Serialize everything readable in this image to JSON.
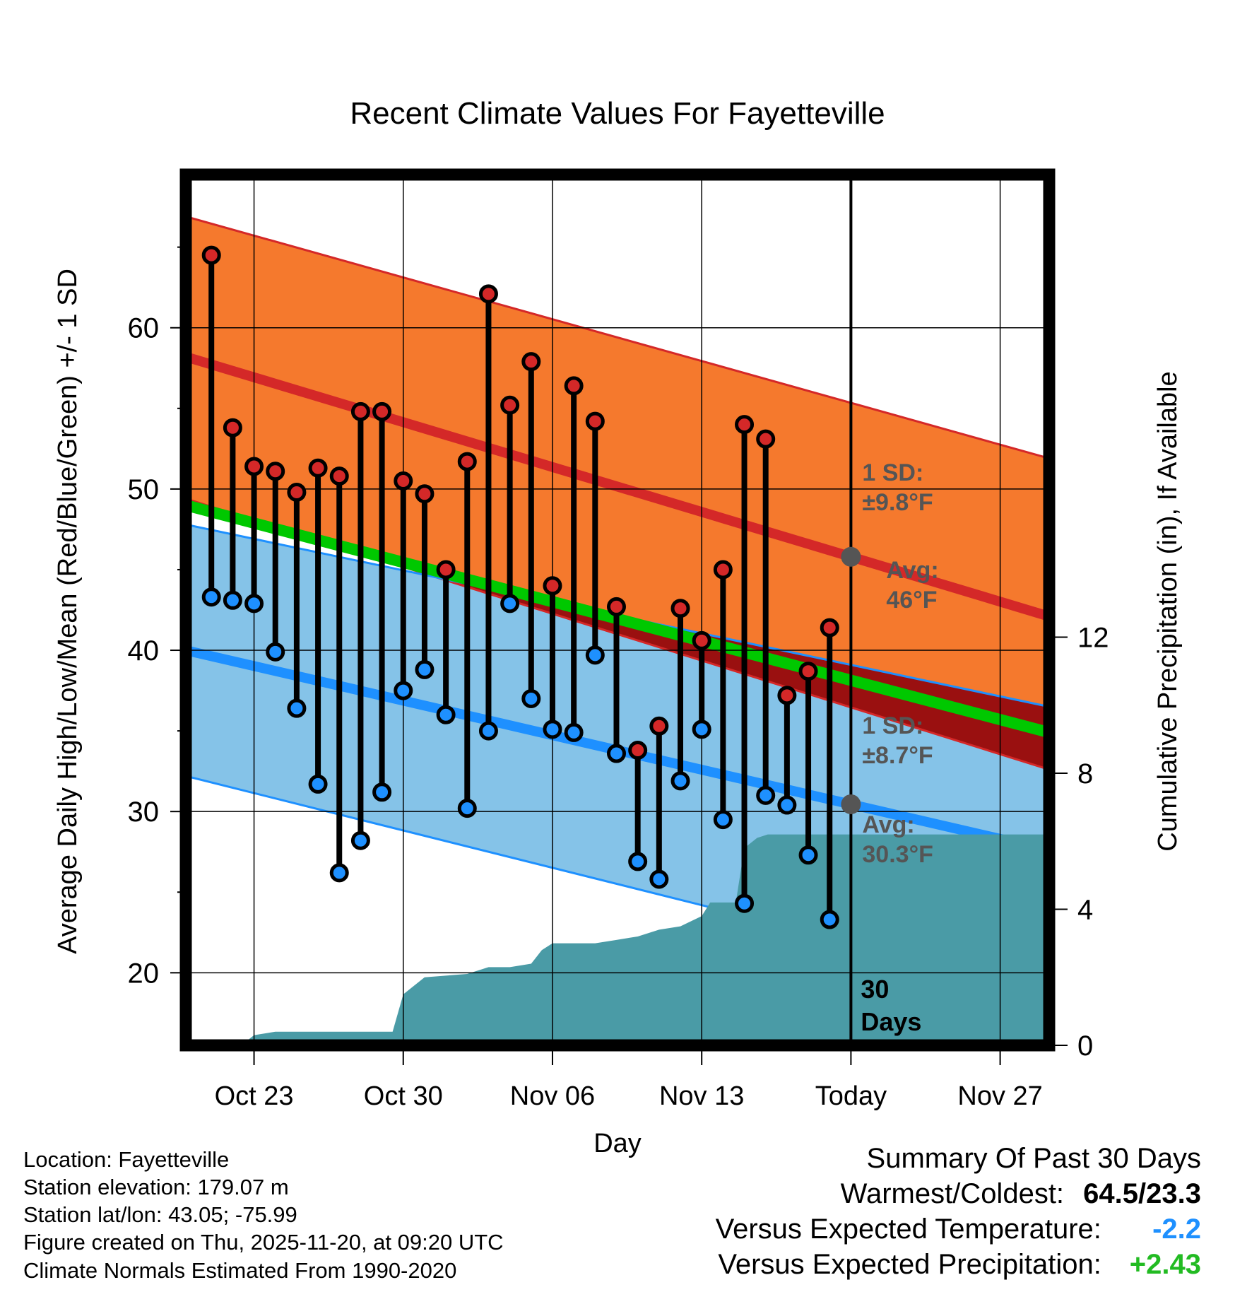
{
  "chart_data": {
    "type": "line",
    "title": "Recent Climate Values For Fayetteville",
    "xlabel": "Day",
    "ylabel": "Average Daily High/Low/Mean (Red/Blue/Green) +/- 1 SD",
    "y2label": "Cumulative Precipitation (in), If Available",
    "ylim": [
      15.5,
      69.5
    ],
    "y2lim": [
      0,
      25.6
    ],
    "xlim": [
      -3.2,
      37.3
    ],
    "yticks": [
      20,
      30,
      40,
      50,
      60
    ],
    "y2ticks": [
      0,
      4,
      8,
      12
    ],
    "xticks": [
      {
        "day": 0,
        "label": "Oct 23"
      },
      {
        "day": 7,
        "label": "Oct 30"
      },
      {
        "day": 14,
        "label": "Nov 06"
      },
      {
        "day": 21,
        "label": "Nov 13"
      },
      {
        "day": 28,
        "label": "Today"
      },
      {
        "day": 35,
        "label": "Nov 27"
      }
    ],
    "normals": {
      "x": [
        -3.2,
        37.3
      ],
      "high_avg": [
        58.2,
        42.1
      ],
      "high_sd_upper": [
        66.9,
        51.9
      ],
      "high_sd_lower": [
        49.4,
        32.6
      ],
      "low_avg": [
        40.0,
        27.6
      ],
      "low_sd_upper": [
        47.8,
        36.5
      ],
      "low_sd_lower": [
        32.2,
        18.8
      ],
      "mean_avg": [
        49.0,
        34.9
      ]
    },
    "days": [
      -2,
      -1,
      0,
      1,
      2,
      3,
      4,
      5,
      6,
      7,
      8,
      9,
      10,
      11,
      12,
      13,
      14,
      15,
      16,
      17,
      18,
      19,
      20,
      21,
      22,
      23,
      24,
      25,
      26,
      27
    ],
    "highs": [
      64.5,
      53.8,
      51.4,
      51.1,
      49.8,
      51.3,
      50.8,
      54.8,
      54.8,
      50.5,
      49.7,
      45.0,
      51.7,
      62.1,
      55.2,
      57.9,
      44.0,
      56.4,
      54.2,
      42.7,
      33.8,
      35.3,
      42.6,
      40.6,
      45.0,
      54.0,
      53.1,
      37.2,
      38.7,
      41.4
    ],
    "lows": [
      43.3,
      43.1,
      42.9,
      39.9,
      36.4,
      31.7,
      26.2,
      28.2,
      31.2,
      37.5,
      38.8,
      36.0,
      30.2,
      35.0,
      42.9,
      37.0,
      35.1,
      34.9,
      39.7,
      33.6,
      26.9,
      25.8,
      31.9,
      35.1,
      29.5,
      24.3,
      31.0,
      30.4,
      27.3,
      23.3
    ],
    "precip_cumulative": {
      "x": [
        -3.2,
        -0.6,
        0,
        1,
        5.5,
        6.5,
        7,
        8,
        10,
        11,
        12,
        13,
        13.5,
        14,
        15,
        16,
        17,
        18,
        19,
        20,
        21,
        21.4,
        22,
        22.6,
        23,
        23.6,
        24.1,
        26,
        29,
        37.3
      ],
      "y": [
        0,
        0,
        0.3,
        0.4,
        0.4,
        0.4,
        1.5,
        2.0,
        2.1,
        2.3,
        2.3,
        2.4,
        2.8,
        3.0,
        3.0,
        3.0,
        3.1,
        3.2,
        3.4,
        3.5,
        3.8,
        4.2,
        4.2,
        4.2,
        5.8,
        6.1,
        6.2,
        6.2,
        6.2,
        6.2
      ]
    },
    "annotations": {
      "high_sd": "1 SD:",
      "high_sd_value": "±9.8°F",
      "high_avg": "Avg:",
      "high_avg_value": "46°F",
      "low_sd": "1 SD:",
      "low_sd_value": "±8.7°F",
      "low_avg": "Avg:",
      "low_avg_value": "30.3°F",
      "window_count": "30",
      "window_unit": "Days"
    },
    "colors": {
      "high_band": "#f5792d",
      "high_line": "#d42828",
      "high_edge": "#d42828",
      "low_band": "#85c3e8",
      "low_line": "#1e90ff",
      "mean_line": "#00c800",
      "overlap": "#9a1010",
      "precip": "#4a9ba6",
      "annotation": "#555555",
      "high_dot": "#d42828",
      "low_dot": "#1e90ff"
    }
  },
  "info": {
    "location": "Location: Fayetteville",
    "elevation": "Station elevation: 179.07 m",
    "latlon": "Station lat/lon: 43.05; -75.99",
    "created": "Figure created on Thu, 2025-11-20, at 09:20 UTC",
    "normals": "Climate Normals Estimated From 1990-2020"
  },
  "summary": {
    "title": "Summary Of Past 30 Days",
    "warmest_label": "Warmest/Coldest:",
    "warmest_value": "64.5/23.3",
    "temp_label": "Versus Expected Temperature:",
    "temp_value": "-2.2",
    "temp_color": "#1e90ff",
    "precip_label": "Versus Expected Precipitation:",
    "precip_value": "+2.43",
    "precip_color": "#22bb22"
  }
}
